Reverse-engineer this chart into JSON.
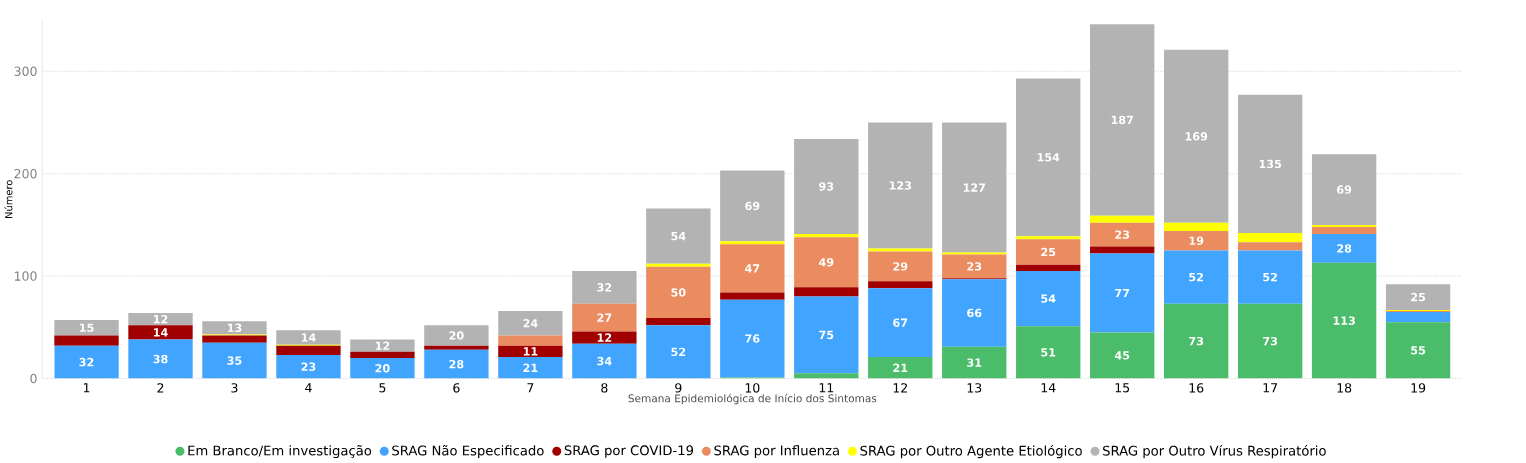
{
  "chart_data": {
    "type": "bar",
    "stacked": true,
    "xlabel": "Semana Epidemiológica de Início dos Sintomas",
    "ylabel": "Número",
    "categories": [
      "1",
      "2",
      "3",
      "4",
      "5",
      "6",
      "7",
      "8",
      "9",
      "10",
      "11",
      "12",
      "13",
      "14",
      "15",
      "16",
      "17",
      "18",
      "19"
    ],
    "ylim": [
      0,
      350
    ],
    "yticks": [
      0,
      100,
      200,
      300
    ],
    "grid": "y",
    "legend": "bottom",
    "series": [
      {
        "name": "Em Branco/Em investigação",
        "color": "#4bbd6a",
        "values": [
          0,
          0,
          0,
          0,
          0,
          0,
          0,
          0,
          0,
          1,
          5,
          21,
          31,
          51,
          45,
          73,
          73,
          113,
          55
        ],
        "value_labels": [
          null,
          null,
          null,
          null,
          null,
          null,
          null,
          null,
          null,
          null,
          null,
          "21",
          "31",
          "51",
          "45",
          "73",
          "73",
          "113",
          "55"
        ]
      },
      {
        "name": "SRAG Não Especificado",
        "color": "#41a5ff",
        "values": [
          32,
          38,
          35,
          23,
          20,
          28,
          21,
          34,
          52,
          76,
          75,
          67,
          66,
          54,
          77,
          52,
          52,
          28,
          10
        ],
        "value_labels": [
          "32",
          "38",
          "35",
          "23",
          "20",
          "28",
          "21",
          "34",
          "52",
          "76",
          "75",
          "67",
          "66",
          "54",
          "77",
          "52",
          "52",
          "28",
          null
        ]
      },
      {
        "name": "SRAG por COVID-19",
        "color": "#a00000",
        "values": [
          10,
          14,
          7,
          9,
          6,
          4,
          11,
          12,
          7,
          7,
          9,
          7,
          1,
          6,
          7,
          0,
          0,
          0,
          0
        ],
        "value_labels": [
          null,
          "14",
          null,
          null,
          null,
          null,
          "11",
          "12",
          null,
          null,
          null,
          null,
          null,
          null,
          null,
          null,
          null,
          null,
          null
        ]
      },
      {
        "name": "SRAG por Influenza",
        "color": "#eb8c60",
        "values": [
          0,
          0,
          0,
          0,
          0,
          0,
          10,
          27,
          50,
          47,
          49,
          29,
          23,
          25,
          23,
          19,
          8,
          7,
          1
        ],
        "value_labels": [
          null,
          null,
          null,
          null,
          null,
          null,
          null,
          "27",
          "50",
          "47",
          "49",
          "29",
          "23",
          "25",
          "23",
          "19",
          null,
          null,
          null
        ]
      },
      {
        "name": "SRAG por Outro Agente Etiológico",
        "color": "#ffff00",
        "values": [
          0,
          0,
          1,
          1,
          0,
          0,
          0,
          0,
          3,
          3,
          3,
          3,
          2,
          3,
          7,
          8,
          9,
          2,
          1
        ],
        "value_labels": [
          null,
          null,
          null,
          null,
          null,
          null,
          null,
          null,
          null,
          null,
          null,
          null,
          null,
          null,
          null,
          null,
          null,
          null,
          null
        ]
      },
      {
        "name": "SRAG por Outro Vírus Respiratório",
        "color": "#b3b3b3",
        "values": [
          15,
          12,
          13,
          14,
          12,
          20,
          24,
          32,
          54,
          69,
          93,
          123,
          127,
          154,
          187,
          169,
          135,
          69,
          25
        ],
        "value_labels": [
          "15",
          "12",
          "13",
          "14",
          "12",
          "20",
          "24",
          "32",
          "54",
          "69",
          "93",
          "123",
          "127",
          "154",
          "187",
          "169",
          "135",
          "69",
          "25"
        ]
      }
    ]
  }
}
